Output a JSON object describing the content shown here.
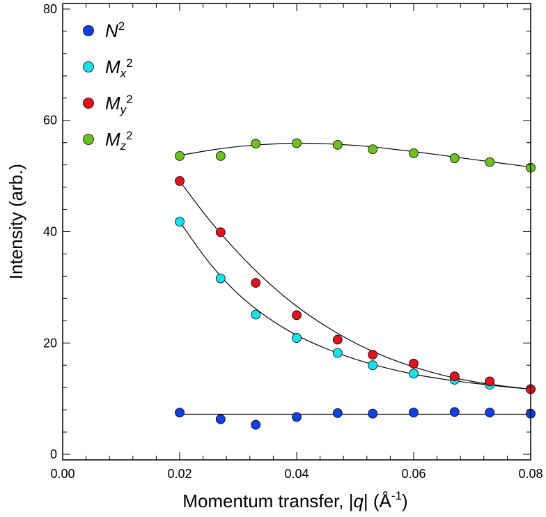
{
  "chart_data": {
    "type": "scatter",
    "xlabel": "Momentum transfer, |q| (Å-1)",
    "xlabel_parts": {
      "prefix": "Momentum transfer, |",
      "var": "q",
      "mid": "| (Å",
      "sup": "-1",
      "suffix": ")"
    },
    "ylabel": "Intensity (arb.)",
    "xlim": [
      0.0,
      0.08
    ],
    "ylim": [
      -1,
      81
    ],
    "x_ticks": [
      0.0,
      0.02,
      0.04,
      0.06,
      0.08
    ],
    "x_tick_labels": [
      "0.00",
      "0.02",
      "0.04",
      "0.06",
      "0.08"
    ],
    "y_ticks": [
      0,
      20,
      40,
      60,
      80
    ],
    "y_tick_labels": [
      "0",
      "20",
      "40",
      "60",
      "80"
    ],
    "grid": false,
    "legend_position": "top-left",
    "series": [
      {
        "name": "N2",
        "base": "N",
        "sub": "",
        "sup": "2",
        "color": "#1440e0",
        "x": [
          0.02,
          0.027,
          0.033,
          0.04,
          0.047,
          0.053,
          0.06,
          0.067,
          0.073,
          0.08
        ],
        "y": [
          7.5,
          6.3,
          5.3,
          6.7,
          7.4,
          7.3,
          7.5,
          7.6,
          7.5,
          7.3
        ],
        "fit": [
          [
            0.02,
            7.2
          ],
          [
            0.08,
            7.2
          ]
        ]
      },
      {
        "name": "Mx2",
        "base": "M",
        "sub": "x",
        "sup": "2",
        "color": "#19e0e6",
        "x": [
          0.02,
          0.027,
          0.033,
          0.04,
          0.047,
          0.053,
          0.06,
          0.067,
          0.073,
          0.08
        ],
        "y": [
          41.8,
          31.6,
          25.1,
          20.9,
          18.2,
          16.0,
          14.5,
          13.4,
          12.5,
          11.7
        ],
        "fit": [
          [
            0.02,
            41.8
          ],
          [
            0.025,
            34.5
          ],
          [
            0.03,
            28.8
          ],
          [
            0.035,
            24.6
          ],
          [
            0.04,
            21.4
          ],
          [
            0.045,
            19.0
          ],
          [
            0.05,
            17.1
          ],
          [
            0.055,
            15.6
          ],
          [
            0.06,
            14.4
          ],
          [
            0.065,
            13.5
          ],
          [
            0.07,
            12.8
          ],
          [
            0.075,
            12.2
          ],
          [
            0.08,
            11.7
          ]
        ]
      },
      {
        "name": "My2",
        "base": "M",
        "sub": "y",
        "sup": "2",
        "color": "#e0141e",
        "x": [
          0.02,
          0.027,
          0.033,
          0.04,
          0.047,
          0.053,
          0.06,
          0.067,
          0.073,
          0.08
        ],
        "y": [
          49.1,
          39.9,
          30.8,
          25.0,
          20.6,
          17.9,
          16.3,
          14.0,
          13.1,
          11.7
        ],
        "fit": [
          [
            0.02,
            49.1
          ],
          [
            0.025,
            42.2
          ],
          [
            0.03,
            36.2
          ],
          [
            0.035,
            31.0
          ],
          [
            0.04,
            26.6
          ],
          [
            0.045,
            23.0
          ],
          [
            0.05,
            20.0
          ],
          [
            0.055,
            17.6
          ],
          [
            0.06,
            15.7
          ],
          [
            0.065,
            14.2
          ],
          [
            0.07,
            13.1
          ],
          [
            0.075,
            12.3
          ],
          [
            0.08,
            11.7
          ]
        ]
      },
      {
        "name": "Mz2",
        "base": "M",
        "sub": "z",
        "sup": "2",
        "color": "#6ec020",
        "x": [
          0.02,
          0.027,
          0.033,
          0.04,
          0.047,
          0.053,
          0.06,
          0.067,
          0.073,
          0.08
        ],
        "y": [
          53.6,
          53.6,
          55.8,
          55.9,
          55.6,
          54.8,
          54.1,
          53.2,
          52.5,
          51.5
        ],
        "fit": [
          [
            0.02,
            53.7
          ],
          [
            0.025,
            54.6
          ],
          [
            0.03,
            55.3
          ],
          [
            0.035,
            55.7
          ],
          [
            0.04,
            55.9
          ],
          [
            0.045,
            55.8
          ],
          [
            0.05,
            55.5
          ],
          [
            0.055,
            55.0
          ],
          [
            0.06,
            54.4
          ],
          [
            0.065,
            53.7
          ],
          [
            0.07,
            53.0
          ],
          [
            0.075,
            52.3
          ],
          [
            0.08,
            51.6
          ]
        ]
      }
    ]
  }
}
